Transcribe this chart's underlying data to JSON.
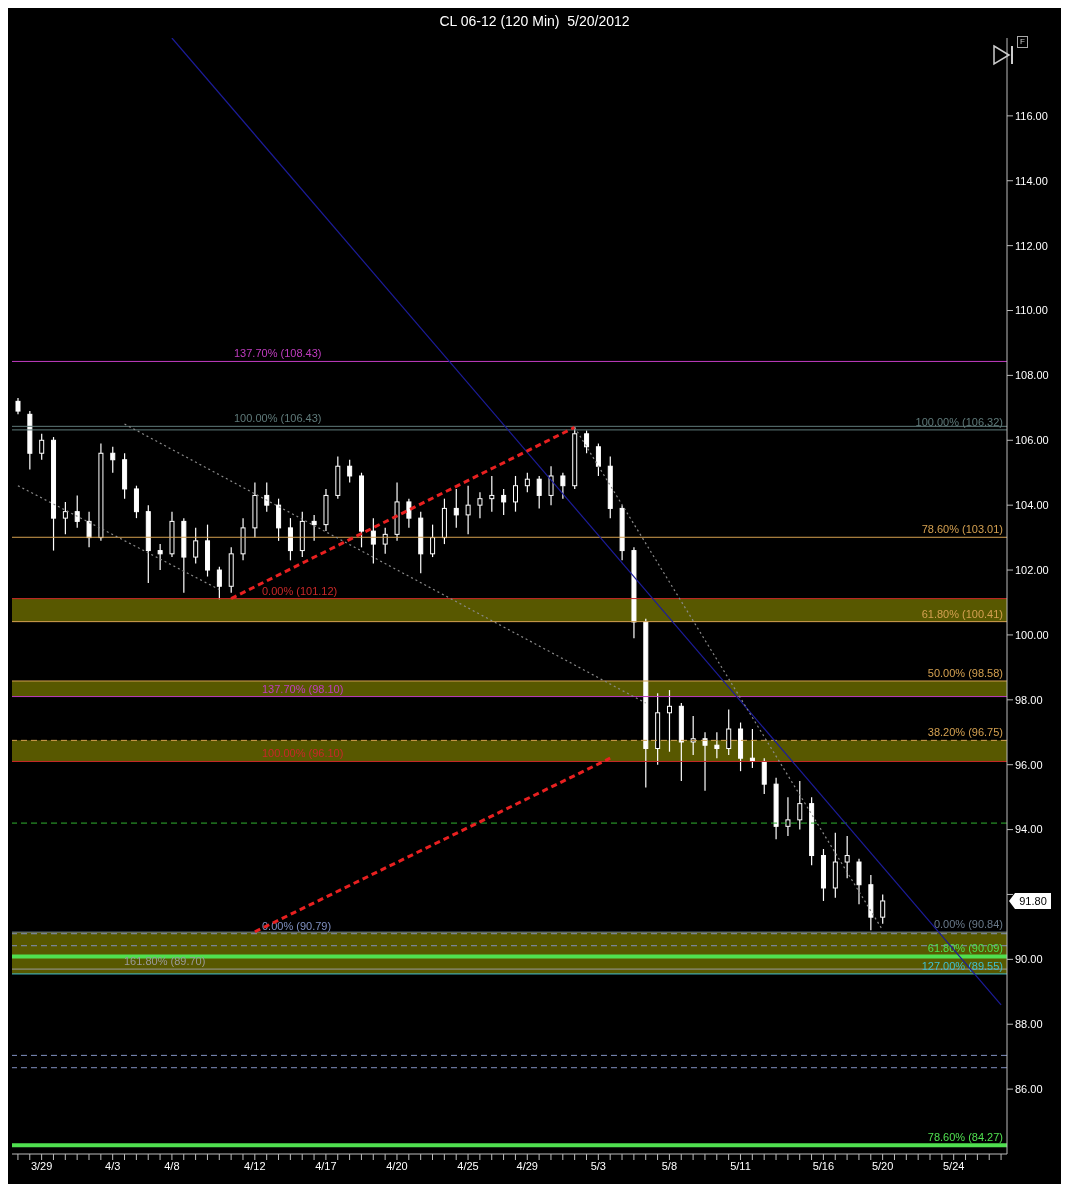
{
  "chart_data": {
    "type": "candlestick",
    "title": "CL 06-12 (120 Min)  5/20/2012",
    "color": "#ffffff",
    "categories": [
      null,
      null,
      "3/29",
      null,
      null,
      null,
      null,
      null,
      "4/3",
      null,
      null,
      null,
      null,
      "4/8",
      null,
      null,
      null,
      null,
      null,
      null,
      "4/12",
      null,
      null,
      null,
      null,
      null,
      "4/17",
      null,
      null,
      null,
      null,
      null,
      "4/20",
      null,
      null,
      null,
      null,
      null,
      "4/25",
      null,
      null,
      null,
      null,
      "4/29",
      null,
      null,
      null,
      null,
      null,
      "5/3",
      null,
      null,
      null,
      null,
      null,
      "5/8",
      null,
      null,
      null,
      null,
      null,
      "5/11",
      null,
      null,
      null,
      null,
      null,
      null,
      "5/16",
      null,
      null,
      null,
      null,
      "5/20",
      null,
      null,
      null,
      null,
      null,
      "5/24",
      null,
      null,
      null,
      null
    ],
    "ohlc": [
      [
        107.2,
        107.3,
        106.8,
        106.9
      ],
      [
        106.8,
        106.9,
        105.1,
        105.6
      ],
      [
        105.6,
        106.2,
        105.4,
        106.0
      ],
      [
        106.0,
        106.1,
        102.6,
        103.6
      ],
      [
        103.6,
        104.1,
        103.1,
        103.8
      ],
      [
        103.8,
        104.3,
        103.3,
        103.5
      ],
      [
        103.5,
        103.8,
        102.7,
        103.0
      ],
      [
        103.0,
        105.9,
        102.9,
        105.6
      ],
      [
        105.6,
        105.8,
        105.0,
        105.4
      ],
      [
        105.4,
        105.6,
        104.2,
        104.5
      ],
      [
        104.5,
        104.6,
        103.6,
        103.8
      ],
      [
        103.8,
        104.0,
        101.6,
        102.6
      ],
      [
        102.6,
        102.8,
        102.0,
        102.5
      ],
      [
        102.5,
        103.8,
        102.4,
        103.5
      ],
      [
        103.5,
        103.6,
        101.3,
        102.4
      ],
      [
        102.4,
        103.3,
        102.2,
        102.9
      ],
      [
        102.9,
        103.4,
        101.8,
        102.0
      ],
      [
        102.0,
        102.1,
        101.1,
        101.5
      ],
      [
        101.5,
        102.7,
        101.3,
        102.5
      ],
      [
        102.5,
        103.6,
        102.3,
        103.3
      ],
      [
        103.3,
        104.7,
        103.0,
        104.3
      ],
      [
        104.3,
        104.7,
        103.8,
        104.0
      ],
      [
        104.0,
        104.2,
        102.9,
        103.3
      ],
      [
        103.3,
        103.6,
        102.3,
        102.6
      ],
      [
        102.6,
        103.8,
        102.4,
        103.5
      ],
      [
        103.5,
        103.7,
        102.9,
        103.4
      ],
      [
        103.4,
        104.5,
        103.2,
        104.3
      ],
      [
        104.3,
        105.5,
        104.2,
        105.2
      ],
      [
        105.2,
        105.4,
        104.7,
        104.9
      ],
      [
        104.9,
        105.0,
        102.7,
        103.2
      ],
      [
        103.2,
        103.6,
        102.2,
        102.8
      ],
      [
        102.8,
        103.3,
        102.5,
        103.1
      ],
      [
        103.1,
        104.7,
        102.9,
        104.1
      ],
      [
        104.1,
        104.2,
        103.3,
        103.6
      ],
      [
        103.6,
        103.8,
        101.9,
        102.5
      ],
      [
        102.5,
        103.4,
        102.4,
        103.0
      ],
      [
        103.0,
        104.2,
        102.8,
        103.9
      ],
      [
        103.9,
        104.5,
        103.3,
        103.7
      ],
      [
        103.7,
        104.6,
        103.1,
        104.0
      ],
      [
        104.0,
        104.4,
        103.6,
        104.2
      ],
      [
        104.2,
        104.9,
        103.8,
        104.3
      ],
      [
        104.3,
        104.5,
        103.7,
        104.1
      ],
      [
        104.1,
        104.9,
        103.8,
        104.6
      ],
      [
        104.6,
        105.0,
        104.4,
        104.8
      ],
      [
        104.8,
        104.9,
        103.9,
        104.3
      ],
      [
        104.3,
        105.2,
        104.0,
        104.9
      ],
      [
        104.9,
        105.0,
        104.2,
        104.6
      ],
      [
        104.6,
        106.4,
        104.5,
        106.2
      ],
      [
        106.2,
        106.3,
        105.6,
        105.8
      ],
      [
        105.8,
        105.9,
        104.9,
        105.2
      ],
      [
        105.2,
        105.5,
        103.6,
        103.9
      ],
      [
        103.9,
        104.0,
        102.3,
        102.6
      ],
      [
        102.6,
        102.7,
        99.9,
        100.4
      ],
      [
        100.4,
        100.5,
        95.3,
        96.5
      ],
      [
        96.5,
        98.2,
        96.0,
        97.6
      ],
      [
        97.6,
        98.3,
        96.4,
        97.8
      ],
      [
        97.8,
        97.9,
        95.5,
        96.7
      ],
      [
        96.7,
        97.5,
        96.3,
        96.8
      ],
      [
        96.8,
        97.0,
        95.2,
        96.6
      ],
      [
        96.6,
        97.0,
        96.2,
        96.5
      ],
      [
        96.5,
        97.7,
        96.3,
        97.1
      ],
      [
        97.1,
        97.3,
        95.8,
        96.2
      ],
      [
        96.2,
        97.1,
        95.9,
        96.1
      ],
      [
        96.1,
        96.2,
        95.1,
        95.4
      ],
      [
        95.4,
        95.6,
        93.7,
        94.1
      ],
      [
        94.1,
        95.0,
        93.8,
        94.3
      ],
      [
        94.3,
        95.5,
        94.0,
        94.8
      ],
      [
        94.8,
        95.0,
        92.9,
        93.2
      ],
      [
        93.2,
        93.4,
        91.8,
        92.2
      ],
      [
        92.2,
        93.9,
        91.9,
        93.0
      ],
      [
        93.0,
        93.8,
        92.5,
        93.2
      ],
      [
        93.0,
        93.1,
        91.7,
        92.3
      ],
      [
        92.3,
        92.6,
        90.9,
        91.3
      ],
      [
        91.3,
        92.0,
        91.1,
        91.8
      ],
      null,
      null,
      null,
      null,
      null,
      null,
      null,
      null,
      null,
      null
    ],
    "series": [
      {
        "type": "line",
        "color": "#1c1c9a",
        "line_style": "solid",
        "values": [
          null,
          null,
          null,
          null,
          null,
          null,
          null,
          null,
          null,
          null,
          null,
          null,
          null,
          118.4,
          null,
          null,
          null,
          null,
          null,
          null,
          null,
          null,
          null,
          null,
          null,
          null,
          null,
          null,
          null,
          null,
          null,
          null,
          null,
          null,
          null,
          null,
          null,
          null,
          null,
          null,
          null,
          null,
          null,
          null,
          null,
          null,
          null,
          null,
          null,
          null,
          null,
          null,
          null,
          null,
          null,
          null,
          null,
          null,
          null,
          null,
          null,
          null,
          null,
          null,
          null,
          null,
          null,
          null,
          null,
          null,
          null,
          null,
          null,
          null,
          null,
          null,
          null,
          null,
          null,
          null,
          null,
          null,
          null,
          88.6
        ]
      },
      {
        "type": "line",
        "color": "#e82020",
        "line_style": "dashed",
        "values": [
          null,
          null,
          null,
          null,
          null,
          null,
          null,
          null,
          null,
          null,
          null,
          null,
          null,
          null,
          null,
          null,
          null,
          null,
          101.12,
          null,
          null,
          null,
          null,
          null,
          null,
          null,
          null,
          null,
          null,
          null,
          null,
          null,
          null,
          null,
          null,
          null,
          null,
          null,
          null,
          null,
          null,
          null,
          null,
          null,
          null,
          null,
          null,
          106.4,
          null,
          null,
          null,
          null,
          null,
          null,
          null,
          null,
          null,
          null,
          null,
          null,
          null,
          null,
          null,
          null,
          null,
          null,
          null,
          null,
          null,
          null,
          null,
          null,
          null,
          null,
          null,
          null,
          null,
          null,
          null,
          null,
          null,
          null,
          null,
          null
        ]
      },
      {
        "type": "line",
        "color": "#e82020",
        "line_style": "dashed",
        "values": [
          null,
          null,
          null,
          null,
          null,
          null,
          null,
          null,
          null,
          null,
          null,
          null,
          null,
          null,
          null,
          null,
          null,
          null,
          null,
          null,
          90.85,
          null,
          null,
          null,
          null,
          null,
          null,
          null,
          null,
          null,
          null,
          null,
          null,
          null,
          null,
          null,
          null,
          null,
          null,
          null,
          null,
          null,
          null,
          null,
          null,
          null,
          null,
          null,
          null,
          null,
          96.2,
          null,
          null,
          null,
          null,
          null,
          null,
          null,
          null,
          null,
          null,
          null,
          null,
          null,
          null,
          null,
          null,
          null,
          null,
          null,
          null,
          null,
          null,
          null,
          null,
          null,
          null,
          null,
          null,
          null,
          null,
          null,
          null,
          null
        ]
      },
      {
        "type": "line",
        "color": "#8a8a8a",
        "line_style": "dotted",
        "values": [
          104.6,
          null,
          null,
          null,
          null,
          null,
          null,
          null,
          null,
          null,
          null,
          null,
          null,
          null,
          null,
          null,
          null,
          101.4,
          null,
          null,
          null,
          null,
          null,
          null,
          null,
          null,
          null,
          null,
          null,
          null,
          null,
          null,
          null,
          null,
          null,
          null,
          null,
          null,
          null,
          null,
          null,
          null,
          null,
          null,
          null,
          null,
          null,
          null,
          null,
          null,
          null,
          null,
          null,
          null,
          null,
          null,
          null,
          null,
          null,
          null,
          null,
          null,
          null,
          null,
          null,
          null,
          null,
          null,
          null,
          null,
          null,
          null,
          null,
          null,
          null,
          null,
          null,
          null,
          null,
          null,
          null,
          null,
          null,
          null
        ]
      },
      {
        "type": "line",
        "color": "#8a8a8a",
        "line_style": "dotted",
        "values": [
          null,
          null,
          null,
          null,
          null,
          null,
          null,
          null,
          null,
          106.5,
          null,
          null,
          null,
          null,
          null,
          null,
          null,
          null,
          null,
          null,
          null,
          null,
          null,
          null,
          null,
          null,
          null,
          null,
          null,
          null,
          null,
          null,
          null,
          null,
          null,
          null,
          null,
          null,
          null,
          null,
          null,
          null,
          null,
          null,
          null,
          null,
          null,
          null,
          null,
          null,
          null,
          null,
          null,
          97.9,
          null,
          null,
          null,
          null,
          null,
          null,
          null,
          null,
          null,
          null,
          null,
          null,
          null,
          null,
          null,
          null,
          null,
          null,
          null,
          null,
          null,
          null,
          null,
          null,
          null,
          null,
          null,
          null,
          null,
          null
        ]
      },
      {
        "type": "line",
        "color": "#8a8a8a",
        "line_style": "dotted",
        "values": [
          null,
          null,
          null,
          null,
          null,
          null,
          null,
          null,
          null,
          null,
          null,
          null,
          null,
          null,
          null,
          null,
          null,
          null,
          null,
          null,
          null,
          null,
          null,
          null,
          null,
          null,
          null,
          null,
          null,
          null,
          null,
          null,
          null,
          null,
          null,
          null,
          null,
          null,
          null,
          null,
          null,
          null,
          null,
          null,
          null,
          null,
          null,
          106.4,
          null,
          null,
          null,
          null,
          null,
          null,
          null,
          null,
          null,
          null,
          null,
          null,
          null,
          null,
          null,
          null,
          null,
          null,
          null,
          null,
          null,
          null,
          null,
          null,
          null,
          90.9,
          null,
          null,
          null,
          null,
          null,
          null,
          null,
          null,
          null,
          null
        ]
      }
    ],
    "bands": [
      {
        "axis": "y",
        "from": 100.41,
        "to": 101.12,
        "color": "#6e6e00"
      },
      {
        "axis": "y",
        "from": 98.1,
        "to": 98.58,
        "color": "#6e6e00"
      },
      {
        "axis": "y",
        "from": 96.1,
        "to": 96.75,
        "color": "#6e6e00"
      },
      {
        "axis": "y",
        "from": 89.55,
        "to": 90.84,
        "color": "#6e6e00"
      }
    ],
    "ref_lines": [
      {
        "axis": "y",
        "value": 108.43,
        "label": "137.70% (108.43)",
        "color": "#c03cc0",
        "line_style": "solid"
      },
      {
        "axis": "y",
        "value": 106.43,
        "label": "100.00% (106.43)",
        "color": "#5f7a7a",
        "line_style": "solid"
      },
      {
        "axis": "y",
        "value": 106.32,
        "label": "100.00% (106.32)",
        "color": "#5f7a7a",
        "line_style": "solid"
      },
      {
        "axis": "y",
        "value": 103.01,
        "label": "78.60% (103.01)",
        "color": "#d4a050",
        "line_style": "solid"
      },
      {
        "axis": "y",
        "value": 101.12,
        "label": "0.00% (101.12)",
        "color": "#c82828",
        "line_style": "solid"
      },
      {
        "axis": "y",
        "value": 100.41,
        "label": "61.80% (100.41)",
        "color": "#d4a050",
        "line_style": "solid"
      },
      {
        "axis": "y",
        "value": 98.58,
        "label": "50.00% (98.58)",
        "color": "#d4a050",
        "line_style": "solid"
      },
      {
        "axis": "y",
        "value": 98.1,
        "label": "137.70% (98.10)",
        "color": "#c03cc0",
        "line_style": "solid"
      },
      {
        "axis": "y",
        "value": 96.75,
        "label": "38.20% (96.75)",
        "color": "#d4a050",
        "line_style": "dashed"
      },
      {
        "axis": "y",
        "value": 96.1,
        "label": "100.00% (96.10)",
        "color": "#c82828",
        "line_style": "solid"
      },
      {
        "axis": "y",
        "value": 94.2,
        "color": "#30b030",
        "line_style": "dashed"
      },
      {
        "axis": "y",
        "value": 90.79,
        "label": "0.00% (90.79)",
        "color": "#8090c0",
        "line_style": "dashed"
      },
      {
        "axis": "y",
        "value": 90.84,
        "label": "0.00% (90.84)",
        "color": "#6a7a8a",
        "line_style": "solid"
      },
      {
        "axis": "y",
        "value": 90.42,
        "color": "#8090c0",
        "line_style": "dashed"
      },
      {
        "axis": "y",
        "value": 90.09,
        "label": "61.80% (90.09)",
        "color": "#50e050",
        "line_style": "solid"
      },
      {
        "axis": "y",
        "value": 89.7,
        "label": "161.80% (89.70)",
        "color": "#9a9a9a",
        "line_style": "solid"
      },
      {
        "axis": "y",
        "value": 89.55,
        "label": "127.00% (89.55)",
        "color": "#40c0d0",
        "line_style": "solid"
      },
      {
        "axis": "y",
        "value": 87.04,
        "color": "#8090c0",
        "line_style": "dashed"
      },
      {
        "axis": "y",
        "value": 86.66,
        "color": "#8090c0",
        "line_style": "dashed"
      },
      {
        "axis": "y",
        "value": 84.27,
        "label": "78.60% (84.27)",
        "color": "#50e050",
        "line_style": "solid"
      }
    ],
    "annotations": [
      "F",
      "91.80"
    ],
    "ylim": [
      84,
      118.4
    ],
    "yticks": [
      {
        "value": 86,
        "label": "86.00"
      },
      {
        "value": 88,
        "label": "88.00"
      },
      {
        "value": 90,
        "label": "90.00"
      },
      {
        "value": 92,
        "label": null
      },
      {
        "value": 94,
        "label": "94.00"
      },
      {
        "value": 96,
        "label": "96.00"
      },
      {
        "value": 98,
        "label": "98.00"
      },
      {
        "value": 100,
        "label": "100.00"
      },
      {
        "value": 102,
        "label": "102.00"
      },
      {
        "value": 104,
        "label": "104.00"
      },
      {
        "value": 106,
        "label": "106.00"
      },
      {
        "value": 108,
        "label": "108.00"
      },
      {
        "value": 110,
        "label": "110.00"
      },
      {
        "value": 112,
        "label": "112.00"
      },
      {
        "value": 114,
        "label": "114.00"
      },
      {
        "value": 116,
        "label": "116.00"
      }
    ]
  }
}
